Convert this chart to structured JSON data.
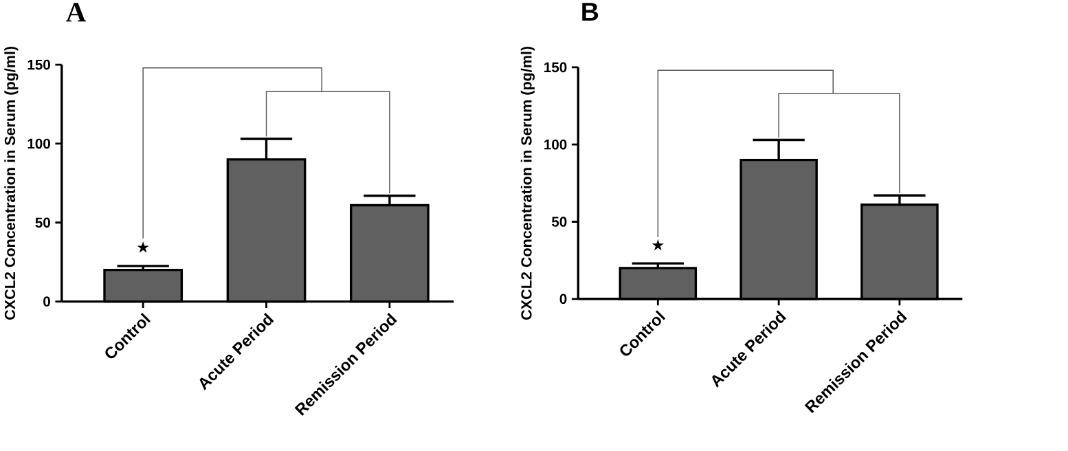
{
  "chart_data": [
    {
      "type": "bar",
      "title": "A",
      "ylabel": "CXCL2 Concentration in Serum (pg/ml)",
      "categories": [
        "Control",
        "Acute Period",
        "Remission Period"
      ],
      "values": [
        20,
        90,
        61
      ],
      "errors": [
        2.5,
        13,
        6
      ],
      "color": "#606060",
      "ylim": [
        0,
        150
      ],
      "yticks": [
        0,
        50,
        100,
        150
      ],
      "annotations": [
        "★"
      ]
    },
    {
      "type": "bar",
      "title": "B",
      "ylabel": "CXCL2 Concentration in Serum (pg/ml)",
      "categories": [
        "Control",
        "Acute Period",
        "Remission Period"
      ],
      "values": [
        20,
        90,
        61
      ],
      "errors": [
        3,
        13,
        6
      ],
      "color": "#606060",
      "ylim": [
        0,
        150
      ],
      "yticks": [
        0,
        50,
        100,
        150
      ],
      "annotations": [
        "★"
      ]
    }
  ]
}
